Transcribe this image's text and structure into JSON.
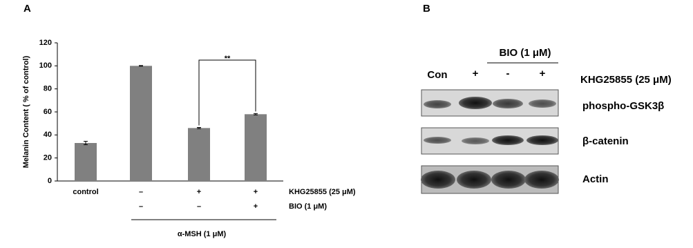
{
  "chart_data": {
    "type": "bar",
    "panel_label": "A",
    "y_label": "Melanin Content ( % of control)",
    "categories": [
      "control",
      "–",
      "+",
      "+"
    ],
    "categories_label": "KHG25855 (25 μM)",
    "values": [
      33,
      100,
      46,
      58
    ],
    "errors": [
      1.5,
      0.3,
      0.5,
      0.6
    ],
    "color": "#808080",
    "ylim": [
      0,
      120
    ],
    "yticks": [
      0,
      20,
      40,
      60,
      80,
      100,
      120
    ],
    "second_row": {
      "label": "BIO (1 μM)",
      "labels": [
        null,
        "–",
        "–",
        "+"
      ]
    },
    "group_label": "α-MSH (1 μM)",
    "annotation": "**"
  },
  "blot": {
    "panel_label": "B",
    "bio_label": "BIO (1 μM)",
    "lanes": [
      "Con",
      "+",
      "-",
      "+"
    ],
    "treatment_label": "KHG25855 (25 μM)",
    "rows": [
      "phospho-GSK3β",
      "β-catenin",
      "Actin"
    ]
  }
}
